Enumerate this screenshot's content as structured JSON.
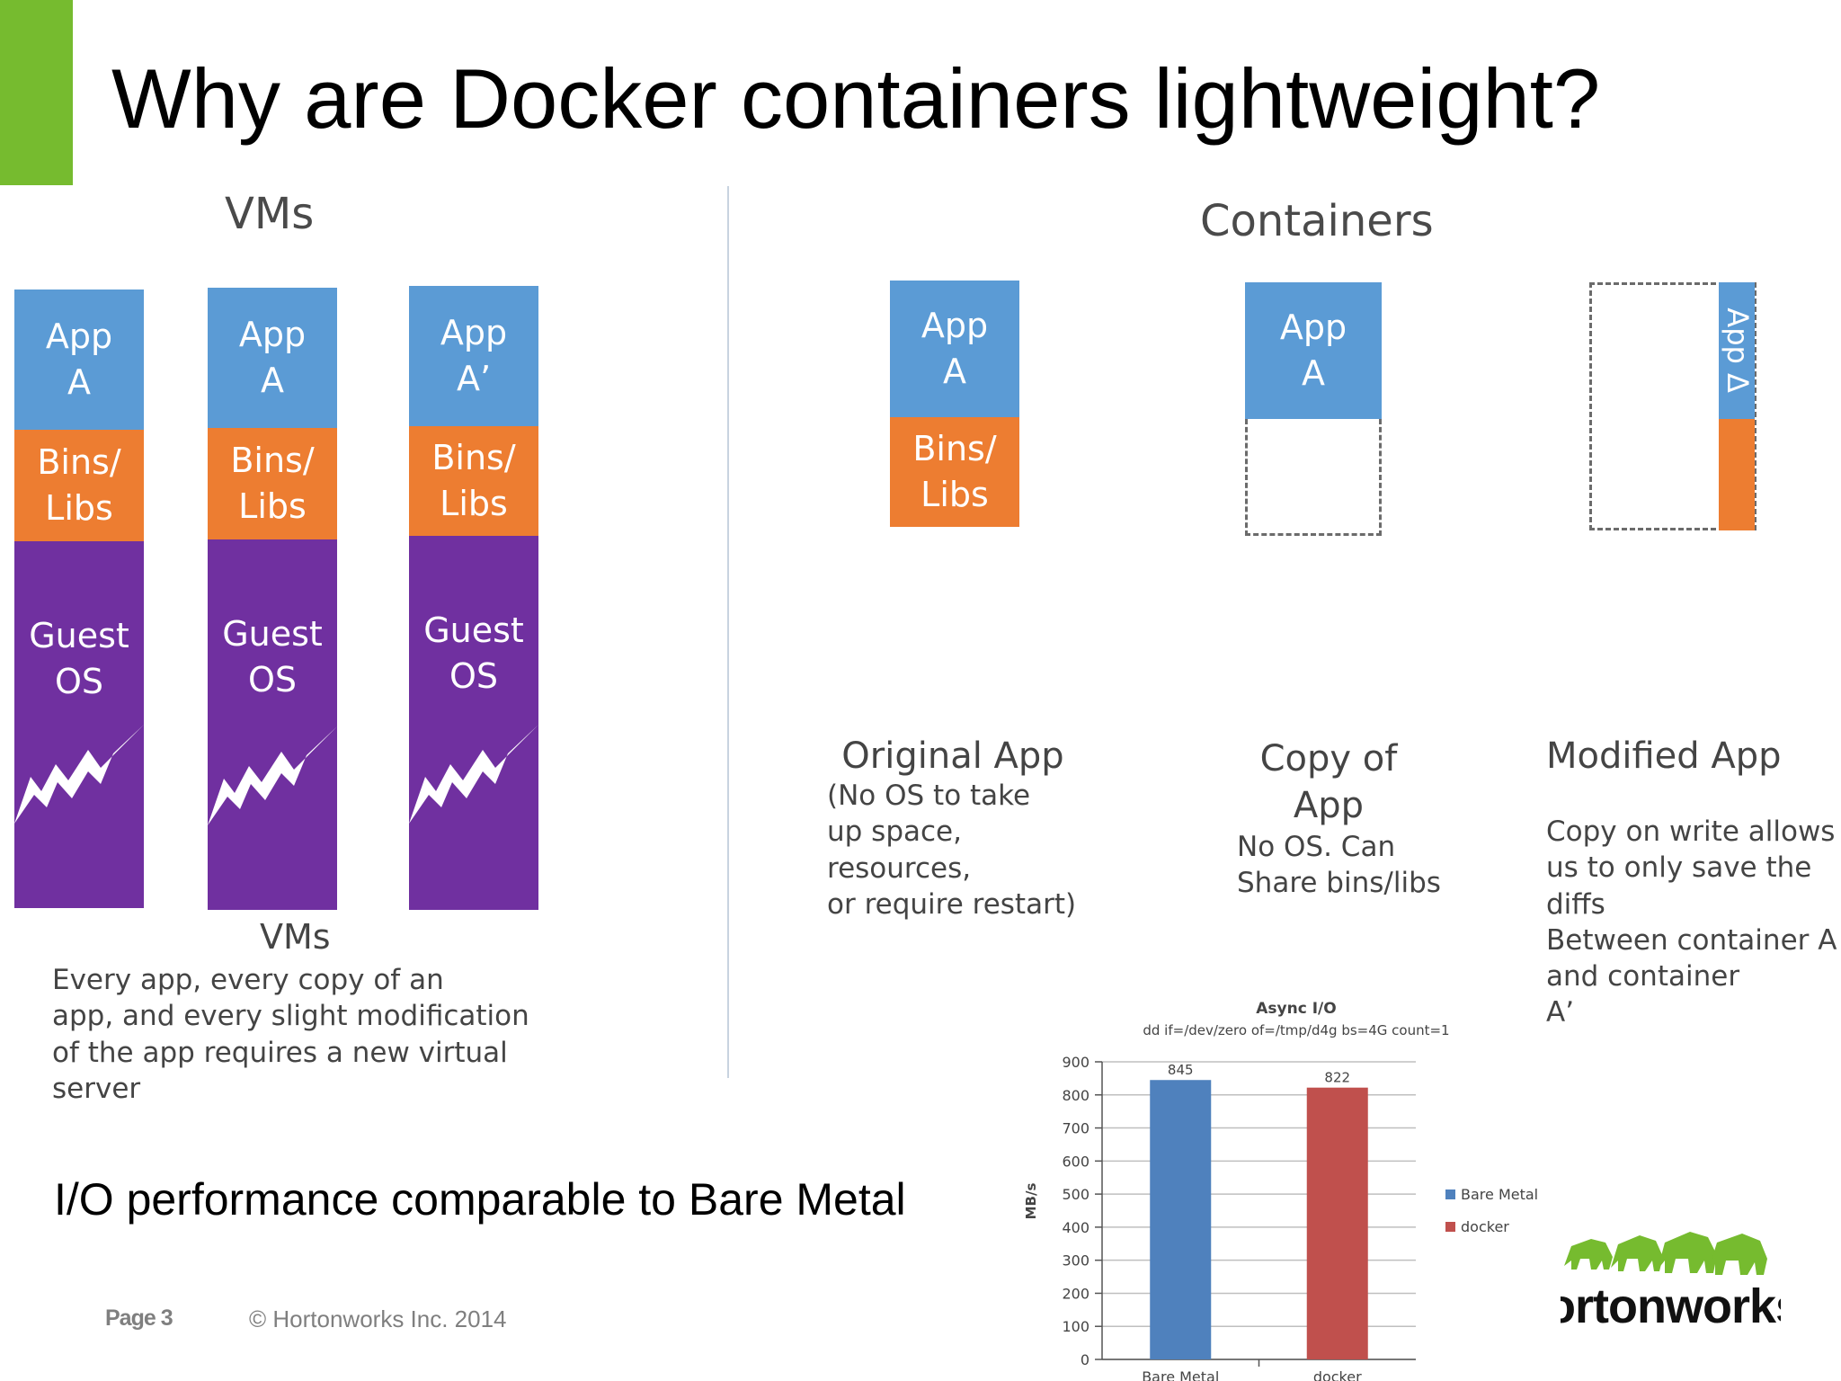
{
  "slide": {
    "title": "Why are Docker containers lightweight?",
    "io_statement": "I/O performance comparable to Bare Metal",
    "page_label": "Page 3",
    "copyright": "© Hortonworks Inc. 2014",
    "logo_text": "ortonworks",
    "accent_color": "#76bb2f"
  },
  "vms": {
    "heading": "VMs",
    "subheading": "VMs",
    "caption": "Every app, every copy of an\napp, and every slight modification\nof the app requires a new virtual server",
    "stacks": [
      {
        "app": "App\nA",
        "bins": "Bins/\nLibs",
        "os": "Guest\nOS"
      },
      {
        "app": "App\nA",
        "bins": "Bins/\nLibs",
        "os": "Guest\nOS"
      },
      {
        "app": "App\nA’",
        "bins": "Bins/\nLibs",
        "os": "Guest\nOS"
      }
    ],
    "colors": {
      "app": "#5b9bd5",
      "bins": "#ed7d31",
      "os": "#7030a0"
    }
  },
  "containers": {
    "heading": "Containers",
    "original": {
      "app": "App\nA",
      "bins": "Bins/\nLibs",
      "title": "Original App",
      "caption": "(No OS to take\nup space, resources,\nor require restart)"
    },
    "copy": {
      "app": "App\nA",
      "title": "Copy of\nApp",
      "caption": "No OS. Can\nShare bins/libs"
    },
    "modified": {
      "app_delta": "App Δ",
      "title": "Modified App",
      "caption": "Copy on write allows\nus to only save the diffs\nBetween container A\nand container\nA’"
    }
  },
  "chart_data": {
    "type": "bar",
    "title": "Async I/O",
    "subtitle": "dd if=/dev/zero of=/tmp/d4g bs=4G count=1",
    "ylabel": "MB/s",
    "xlabel": "",
    "categories": [
      "Bare Metal",
      "docker"
    ],
    "values": [
      845,
      822
    ],
    "data_labels": [
      "845",
      "822"
    ],
    "bar_colors": [
      "#4f81bd",
      "#c0504d"
    ],
    "ylim": [
      0,
      900
    ],
    "yticks": [
      0,
      100,
      200,
      300,
      400,
      500,
      600,
      700,
      800,
      900
    ],
    "grid": true,
    "legend": [
      {
        "name": "Bare Metal",
        "color": "#4f81bd"
      },
      {
        "name": "docker",
        "color": "#c0504d"
      }
    ],
    "legend_position": "right"
  }
}
